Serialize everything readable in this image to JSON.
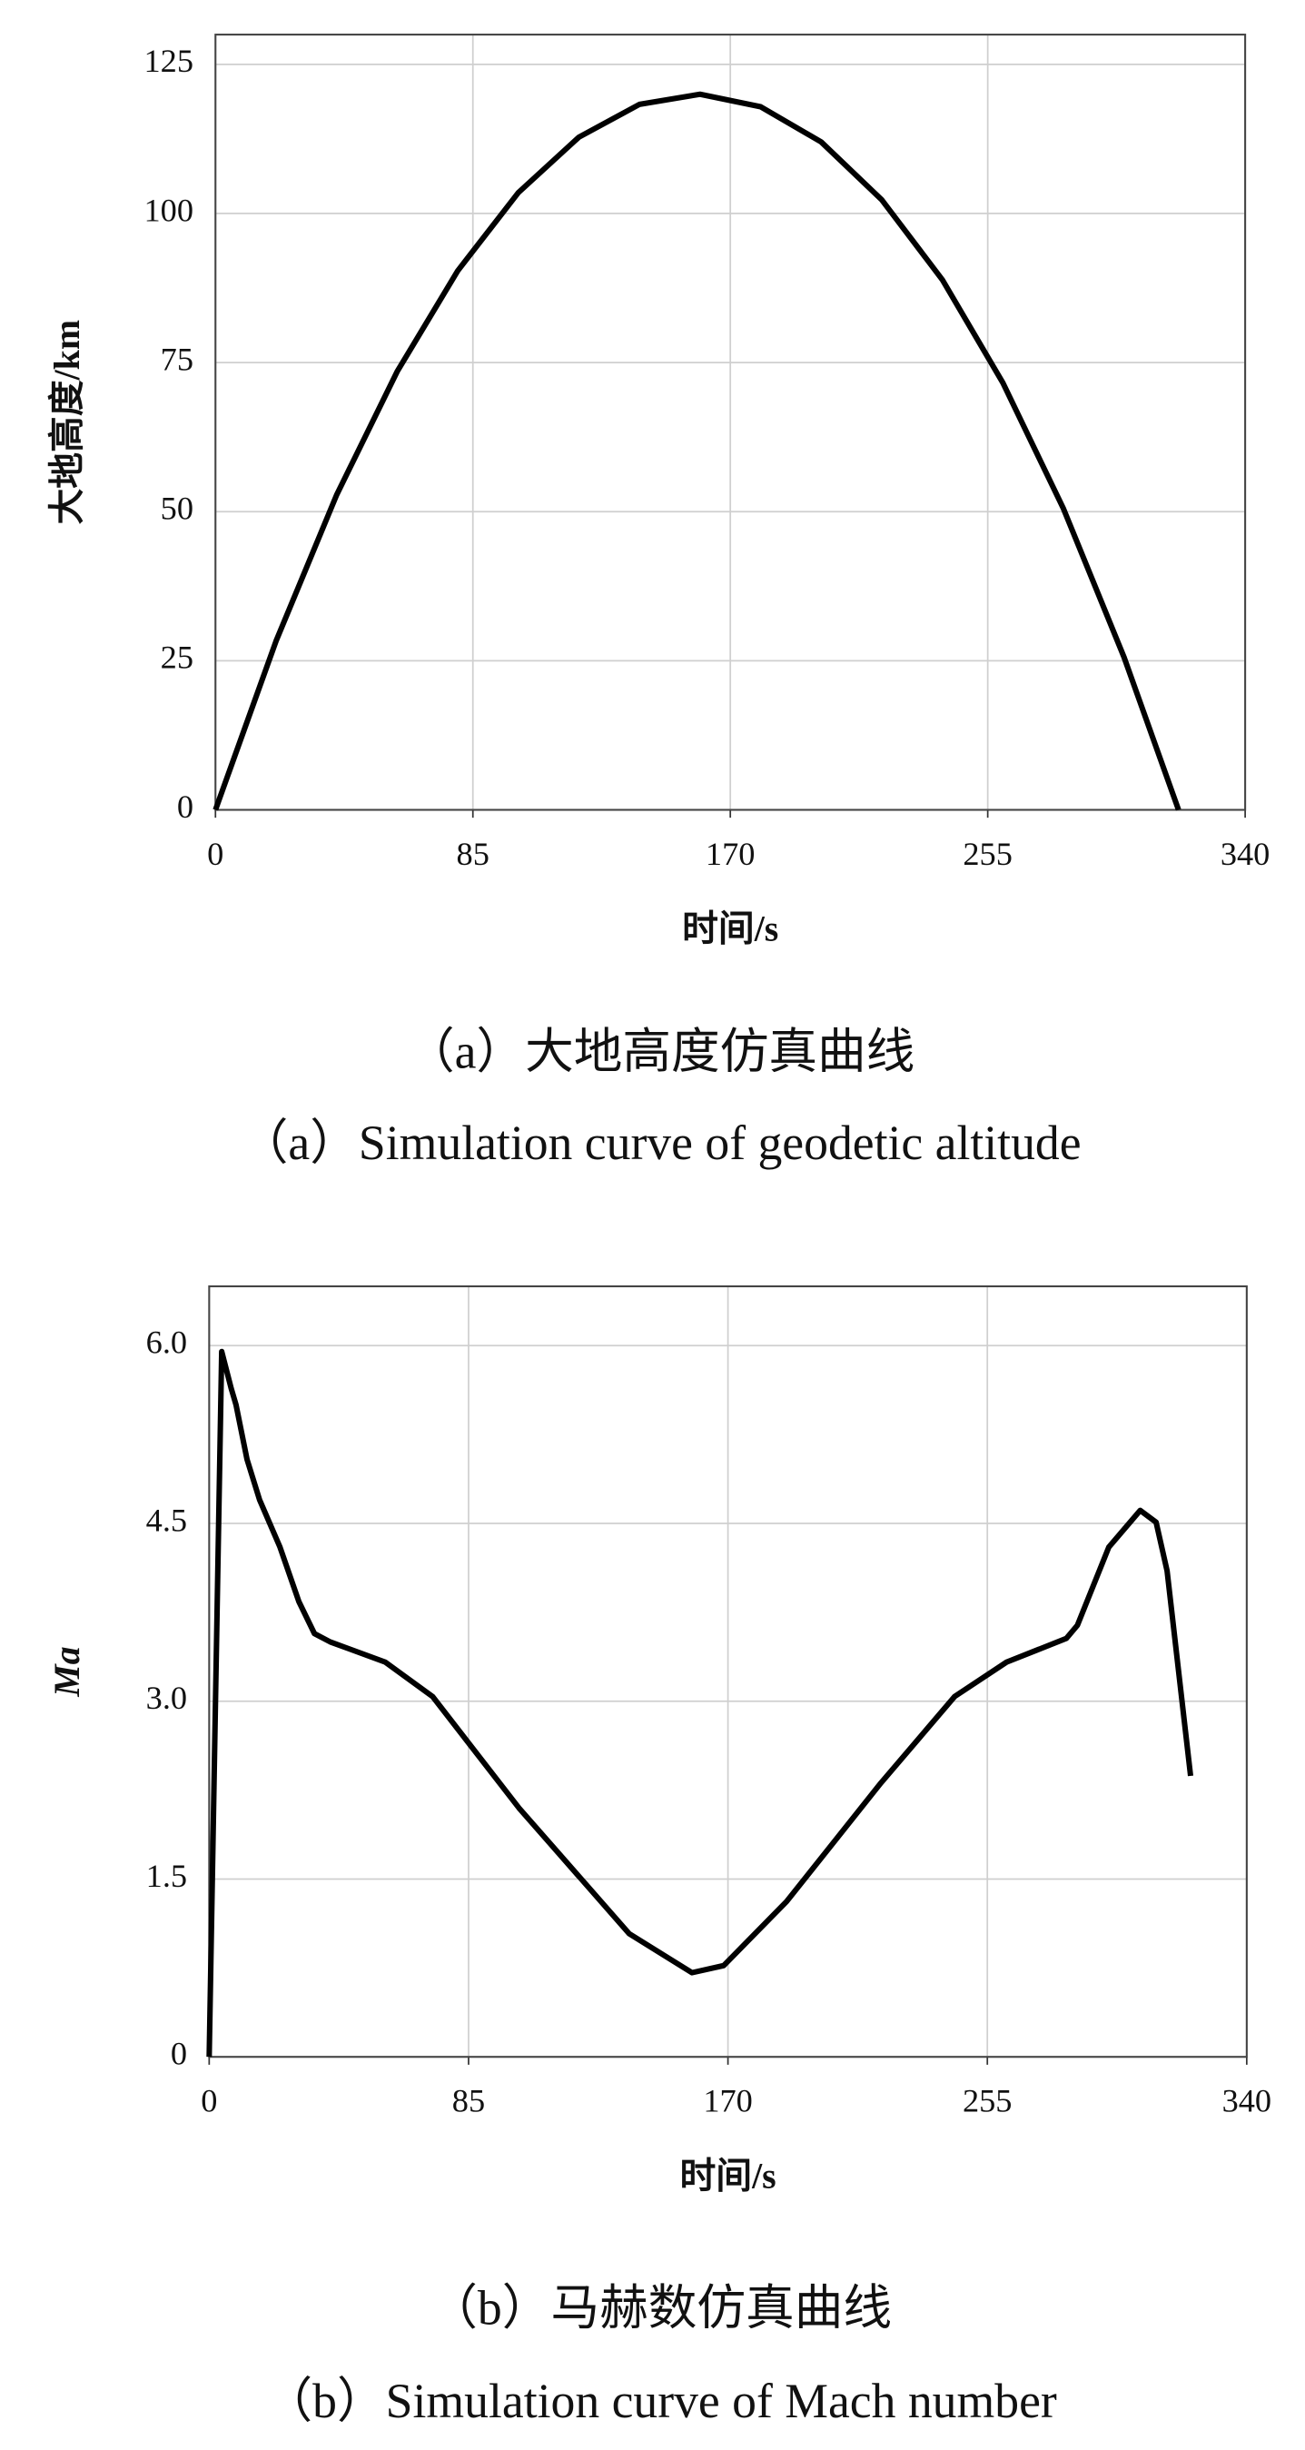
{
  "chart_data": [
    {
      "type": "line",
      "xlabel": "时间/s",
      "ylabel": "大地高度/km",
      "captions": [
        "（a）大地高度仿真曲线",
        "（a）Simulation curve of geodetic altitude"
      ],
      "x": [
        0,
        20,
        40,
        60,
        80,
        100,
        120,
        140,
        160,
        180,
        200,
        220,
        240,
        260,
        280,
        300,
        318
      ],
      "series": [
        {
          "color": "#000000",
          "values": [
            0,
            28.3,
            52.8,
            73.5,
            90.4,
            103.5,
            112.8,
            118.3,
            120.0,
            117.9,
            112.0,
            102.3,
            88.9,
            71.6,
            50.5,
            25.6,
            0
          ]
        }
      ],
      "xlim": [
        0,
        340
      ],
      "xticks": [
        0,
        85,
        170,
        255,
        340
      ],
      "ylim": [
        0,
        130
      ],
      "yticks": [
        0,
        25,
        50,
        75,
        100,
        125
      ],
      "grid": true
    },
    {
      "type": "line",
      "xlabel": "时间/s",
      "ylabel": "Ma",
      "captions": [
        "（b）马赫数仿真曲线",
        "（b）Simulation curve of Mach number"
      ],
      "x": [
        0,
        4.1,
        7.2,
        8.8,
        12.4,
        16.5,
        23.2,
        29.4,
        34.5,
        39.7,
        57.7,
        73.2,
        101.5,
        137.6,
        158.2,
        168.6,
        189.2,
        220.1,
        244.3,
        261.3,
        280.9,
        284.5,
        294.8,
        305.1,
        310.3,
        313.9,
        321.6
      ],
      "series": [
        {
          "color": "#000000",
          "values": [
            0,
            5.95,
            5.64,
            5.5,
            5.04,
            4.7,
            4.3,
            3.84,
            3.57,
            3.5,
            3.33,
            3.04,
            2.1,
            1.04,
            0.71,
            0.77,
            1.31,
            2.31,
            3.04,
            3.33,
            3.53,
            3.64,
            4.3,
            4.61,
            4.51,
            4.1,
            2.37
          ]
        }
      ],
      "xlim": [
        0,
        340
      ],
      "xticks": [
        0,
        85,
        170,
        255,
        340
      ],
      "ylim": [
        0,
        6.5
      ],
      "yticks": [
        0,
        1.5,
        {
          "value": 3,
          "label": "3.0"
        },
        4.5,
        {
          "value": 6,
          "label": "6.0"
        }
      ],
      "grid": true
    }
  ]
}
